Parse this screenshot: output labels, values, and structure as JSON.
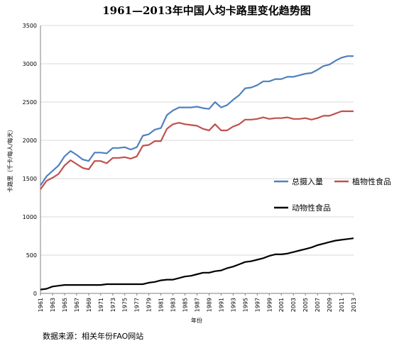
{
  "chart_data": {
    "type": "line",
    "title": "1961—2013年中国人均卡路里变化趋势图",
    "xlabel": "年份",
    "ylabel": "卡路里（千卡/每人/每天）",
    "ylim": [
      0,
      3500
    ],
    "yticks": [
      0,
      500,
      1000,
      1500,
      2000,
      2500,
      3000,
      3500
    ],
    "xtick_labels": [
      "1961",
      "1963",
      "1965",
      "1967",
      "1969",
      "1971",
      "1973",
      "1975",
      "1977",
      "1979",
      "1981",
      "1983",
      "1985",
      "1987",
      "1989",
      "1991",
      "1993",
      "1995",
      "1997",
      "1999",
      "2001",
      "2003",
      "2005",
      "2007",
      "2009",
      "2011",
      "2013"
    ],
    "grid": "horizontal",
    "legend_placement": "right",
    "x": [
      1961,
      1962,
      1963,
      1964,
      1965,
      1966,
      1967,
      1968,
      1969,
      1970,
      1971,
      1972,
      1973,
      1974,
      1975,
      1976,
      1977,
      1978,
      1979,
      1980,
      1981,
      1982,
      1983,
      1984,
      1985,
      1986,
      1987,
      1988,
      1989,
      1990,
      1991,
      1992,
      1993,
      1994,
      1995,
      1996,
      1997,
      1998,
      1999,
      2000,
      2001,
      2002,
      2003,
      2004,
      2005,
      2006,
      2007,
      2008,
      2009,
      2010,
      2011,
      2012,
      2013
    ],
    "series": [
      {
        "name": "总摄入量",
        "color": "#4f81bd",
        "values": [
          1410,
          1530,
          1600,
          1670,
          1790,
          1860,
          1810,
          1750,
          1730,
          1840,
          1840,
          1830,
          1900,
          1900,
          1910,
          1880,
          1910,
          2060,
          2080,
          2140,
          2160,
          2330,
          2390,
          2430,
          2430,
          2430,
          2440,
          2420,
          2410,
          2500,
          2430,
          2460,
          2530,
          2590,
          2680,
          2690,
          2720,
          2770,
          2770,
          2800,
          2800,
          2830,
          2830,
          2850,
          2870,
          2880,
          2920,
          2970,
          2990,
          3040,
          3080,
          3100,
          3100
        ]
      },
      {
        "name": "植物性食品",
        "color": "#c0504d",
        "values": [
          1360,
          1470,
          1510,
          1560,
          1670,
          1740,
          1690,
          1640,
          1620,
          1730,
          1730,
          1700,
          1770,
          1770,
          1780,
          1760,
          1790,
          1930,
          1940,
          1990,
          1990,
          2150,
          2210,
          2230,
          2210,
          2200,
          2190,
          2150,
          2130,
          2210,
          2130,
          2130,
          2180,
          2210,
          2270,
          2270,
          2280,
          2300,
          2280,
          2290,
          2290,
          2300,
          2280,
          2280,
          2290,
          2270,
          2290,
          2320,
          2320,
          2350,
          2380,
          2380,
          2380
        ]
      },
      {
        "name": "动物性食品",
        "color": "#000000",
        "values": [
          50,
          60,
          90,
          100,
          110,
          110,
          110,
          110,
          110,
          110,
          110,
          120,
          120,
          120,
          120,
          120,
          120,
          120,
          140,
          150,
          170,
          180,
          180,
          200,
          220,
          230,
          250,
          270,
          270,
          290,
          300,
          330,
          350,
          380,
          410,
          420,
          440,
          460,
          490,
          510,
          510,
          520,
          540,
          560,
          580,
          600,
          630,
          650,
          670,
          690,
          700,
          710,
          720
        ]
      }
    ],
    "source_note": "数据来源：相关年份FAO网站"
  }
}
